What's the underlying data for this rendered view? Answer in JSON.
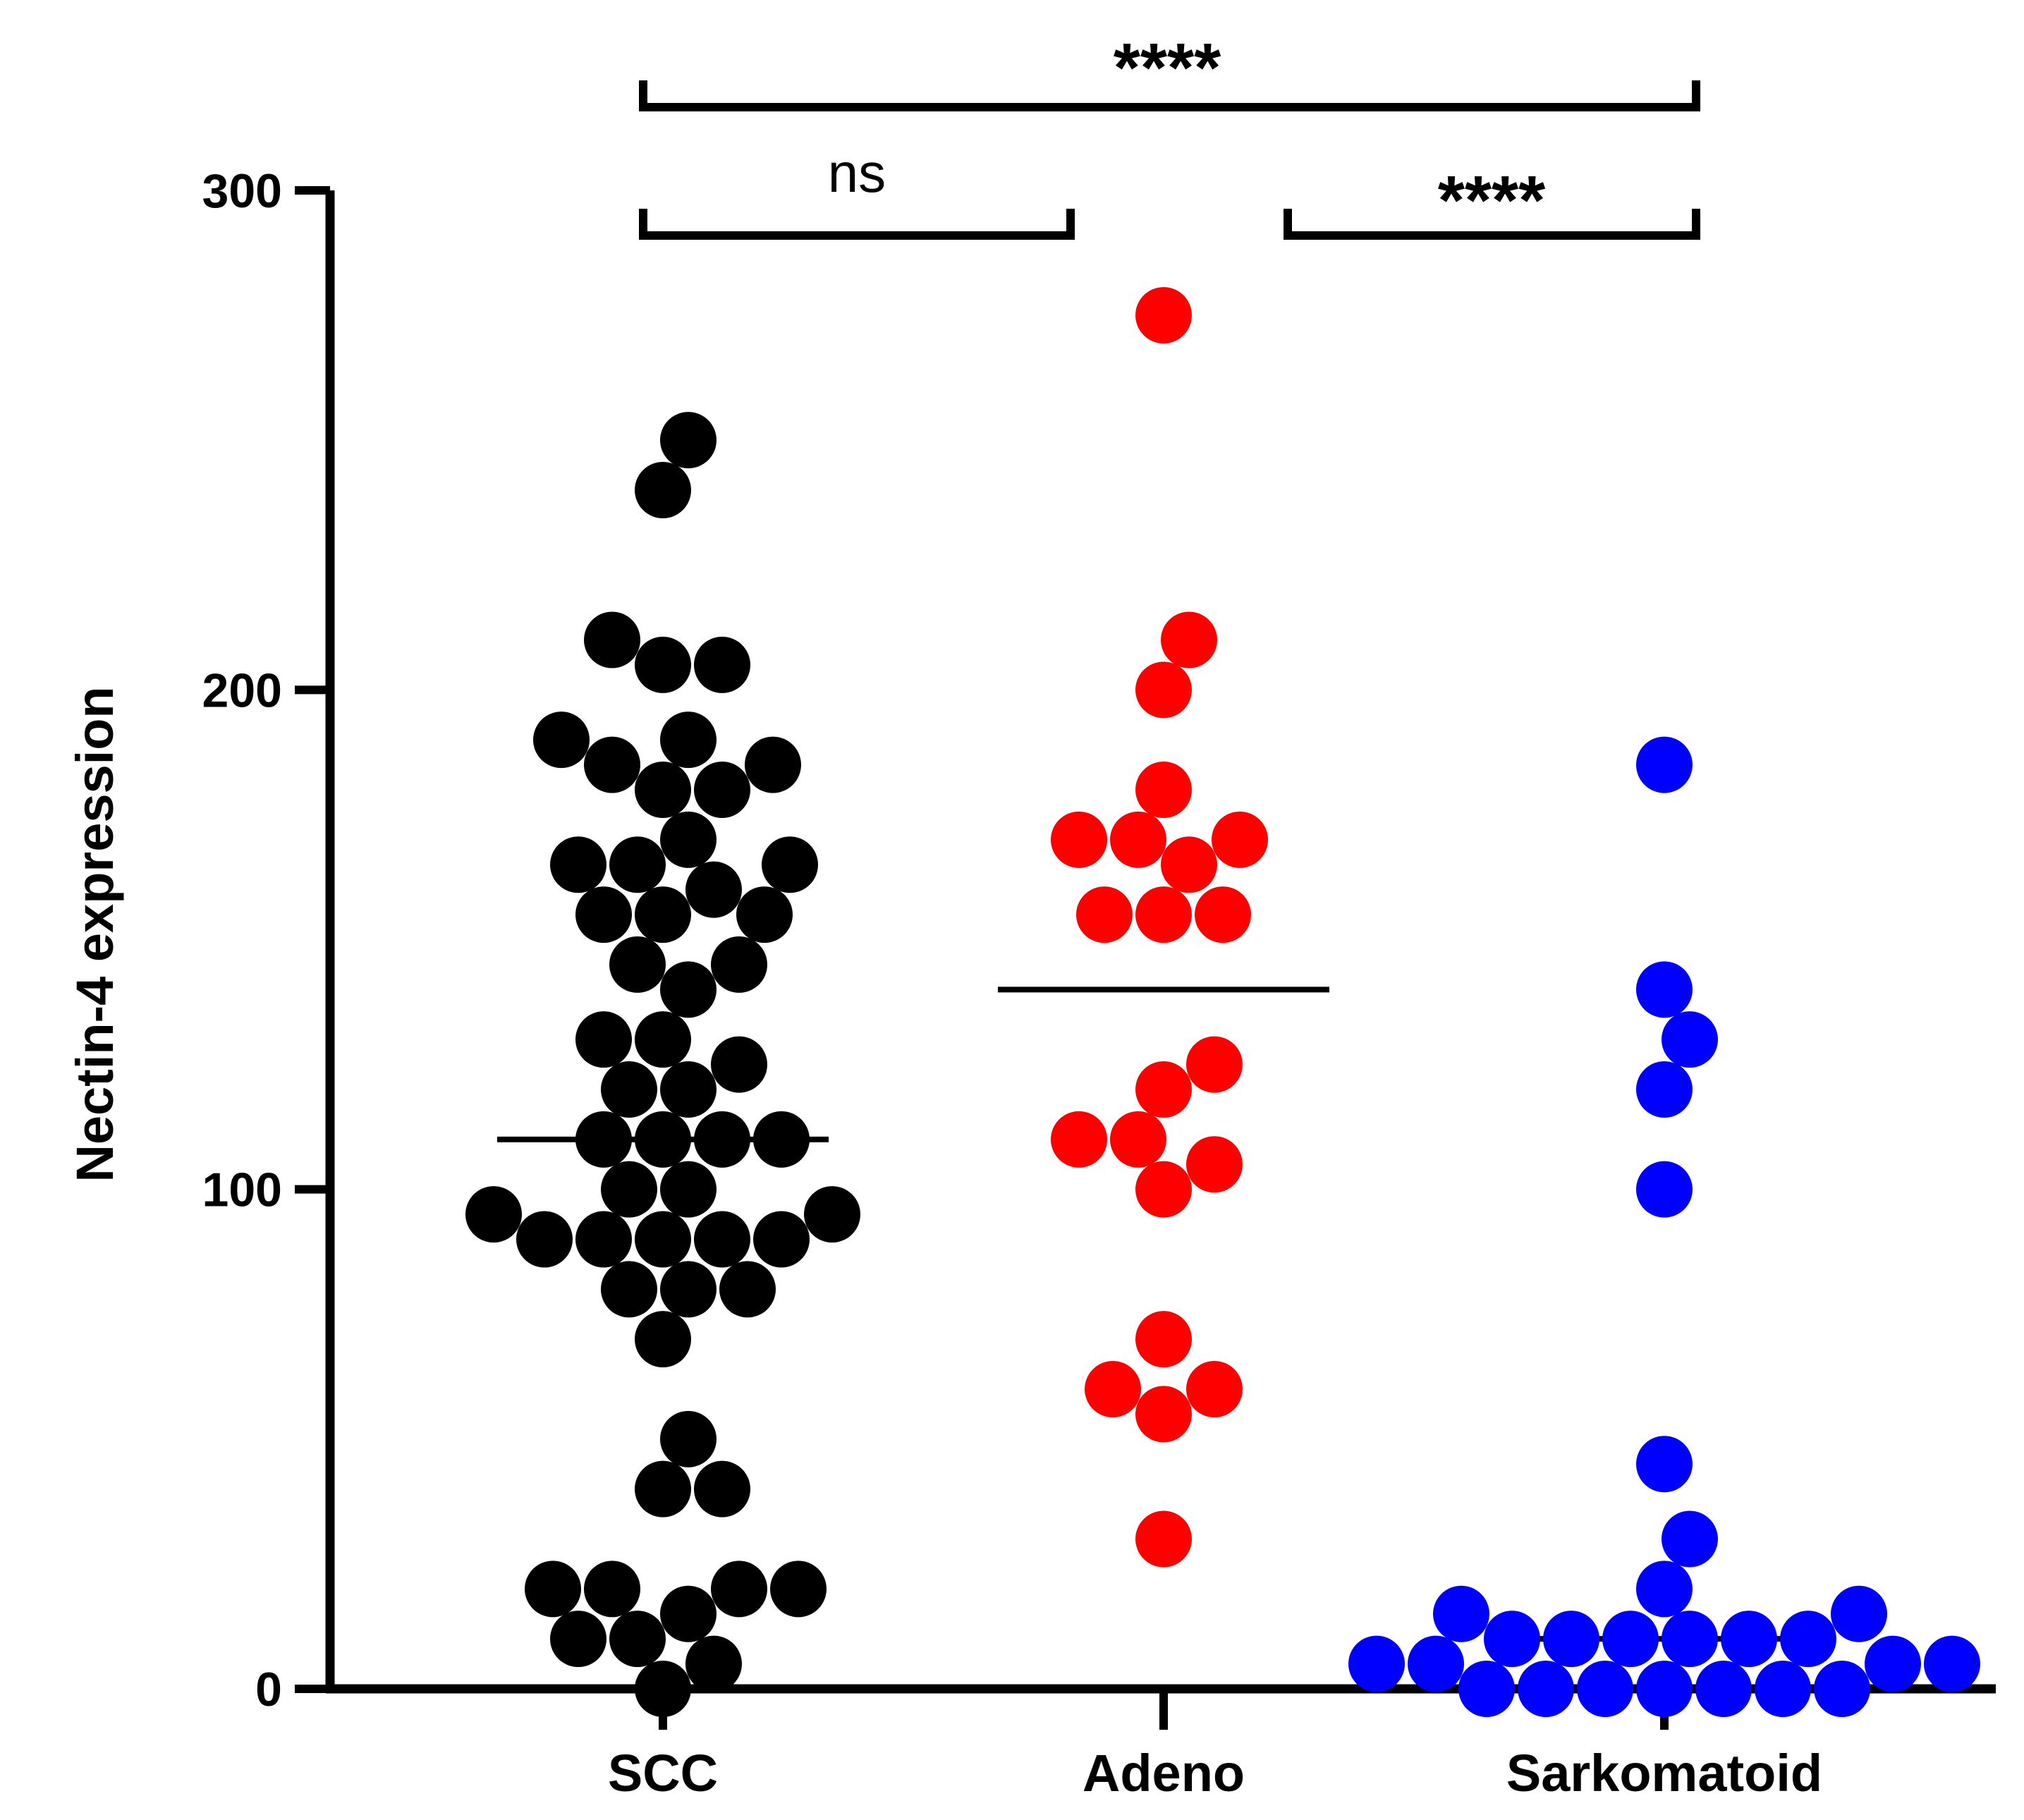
{
  "chart_data": {
    "type": "scatter",
    "subtype": "dot-plot with median lines",
    "title": "",
    "xlabel": "",
    "ylabel": "Nectin-4 expression",
    "ylim": [
      0,
      300
    ],
    "yticks": [
      0,
      100,
      200,
      300
    ],
    "categories": [
      "SCC",
      "Adeno",
      "Sarkomatoid"
    ],
    "series": [
      {
        "name": "SCC",
        "color": "#000000",
        "median": 110,
        "values": [
          0,
          5,
          10,
          10,
          15,
          20,
          20,
          20,
          20,
          40,
          40,
          50,
          70,
          80,
          80,
          80,
          90,
          90,
          90,
          90,
          90,
          95,
          95,
          100,
          100,
          110,
          110,
          110,
          110,
          120,
          120,
          125,
          130,
          130,
          140,
          145,
          145,
          155,
          155,
          155,
          160,
          165,
          165,
          165,
          170,
          180,
          180,
          185,
          185,
          190,
          190,
          205,
          205,
          210,
          240,
          250
        ]
      },
      {
        "name": "Adeno",
        "color": "#ff0000",
        "median": 140,
        "values": [
          30,
          55,
          60,
          60,
          70,
          100,
          105,
          110,
          110,
          120,
          125,
          155,
          155,
          155,
          165,
          170,
          170,
          170,
          180,
          200,
          210,
          275
        ]
      },
      {
        "name": "Sarkomatoid",
        "color": "#0000ff",
        "median": 10,
        "values": [
          0,
          0,
          0,
          0,
          0,
          0,
          0,
          5,
          5,
          5,
          5,
          10,
          10,
          10,
          10,
          10,
          10,
          15,
          15,
          20,
          30,
          45,
          100,
          120,
          130,
          140,
          185
        ]
      }
    ],
    "comparisons": [
      {
        "from": "SCC",
        "to": "Adeno",
        "label": "ns"
      },
      {
        "from": "Adeno",
        "to": "Sarkomatoid",
        "label": "****"
      },
      {
        "from": "SCC",
        "to": "Sarkomatoid",
        "label": "****"
      }
    ]
  }
}
